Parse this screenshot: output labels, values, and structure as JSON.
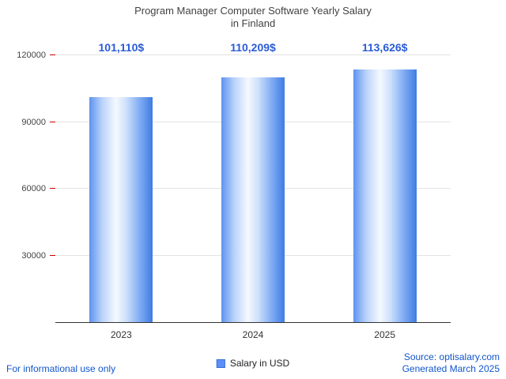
{
  "title": {
    "line1": "Program Manager Computer Software Yearly Salary",
    "line2": "in Finland"
  },
  "chart_data": {
    "type": "bar",
    "title": "Program Manager Computer Software Yearly Salary in Finland",
    "categories": [
      "2023",
      "2024",
      "2025"
    ],
    "values": [
      101110,
      110209,
      113626
    ],
    "value_labels": [
      "101,110$",
      "110,209$",
      "113,626$"
    ],
    "series": [
      {
        "name": "Salary in USD",
        "values": [
          101110,
          110209,
          113626
        ]
      }
    ],
    "xlabel": "",
    "ylabel": "",
    "ylim": [
      0,
      120000
    ],
    "yticks": [
      30000,
      60000,
      90000,
      120000
    ],
    "grid": true,
    "legend": [
      {
        "label": "Salary in USD",
        "color": "#5b8ff9"
      }
    ],
    "legend_position": "bottom"
  },
  "footer": {
    "left_note": "For informational use only",
    "source": "Source: optisalary.com",
    "generated": "Generated March 2025"
  },
  "colors": {
    "value_label": "#2a5bd7",
    "footer_link": "#1155cc",
    "bar_base": "#4a86e8",
    "legend_swatch": "#5b8ff9",
    "grid": "#e3e3e3",
    "axis": "#333333",
    "tick": "#cc0000"
  }
}
